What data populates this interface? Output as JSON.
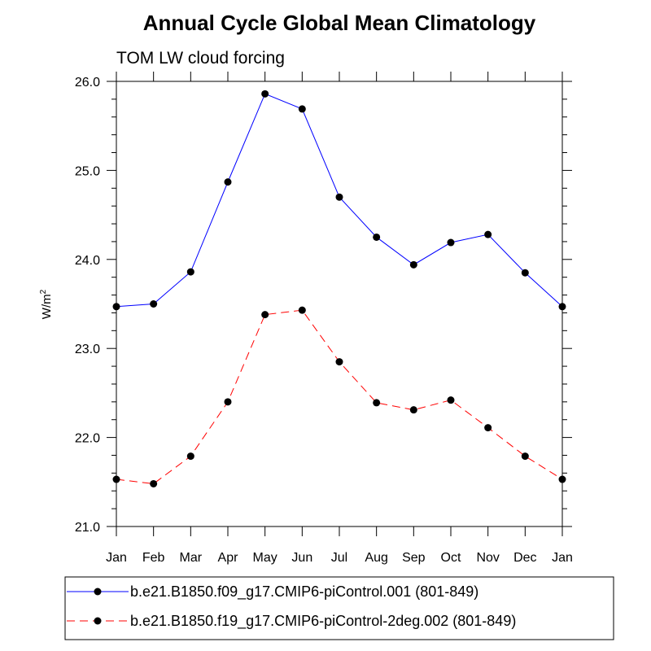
{
  "chart_data": {
    "type": "line",
    "title": "Annual Cycle Global Mean Climatology",
    "subtitle": "TOM LW cloud forcing",
    "xlabel": "",
    "ylabel": "W/m",
    "ylabel_superscript": "2",
    "categories": [
      "Jan",
      "Feb",
      "Mar",
      "Apr",
      "May",
      "Jun",
      "Jul",
      "Aug",
      "Sep",
      "Oct",
      "Nov",
      "Dec",
      "Jan"
    ],
    "y_ticks": [
      "21.0",
      "22.0",
      "23.0",
      "24.0",
      "25.0",
      "26.0"
    ],
    "ylim": [
      21.0,
      26.0
    ],
    "grid": false,
    "legend_position": "bottom",
    "series": [
      {
        "name": "b.e21.B1850.f09_g17.CMIP6-piControl.001 (801-849)",
        "color": "#0000ff",
        "line_style": "solid",
        "marker": "filled-circle",
        "values": [
          23.47,
          23.5,
          23.86,
          24.87,
          25.86,
          25.69,
          24.7,
          24.25,
          23.94,
          24.19,
          24.28,
          23.85,
          23.47
        ]
      },
      {
        "name": "b.e21.B1850.f19_g17.CMIP6-piControl-2deg.002 (801-849)",
        "color": "#ff0000",
        "line_style": "dashed",
        "marker": "filled-circle",
        "values": [
          21.53,
          21.48,
          21.79,
          22.4,
          23.38,
          23.43,
          22.85,
          22.39,
          22.31,
          22.42,
          22.11,
          21.79,
          21.53
        ]
      }
    ]
  }
}
